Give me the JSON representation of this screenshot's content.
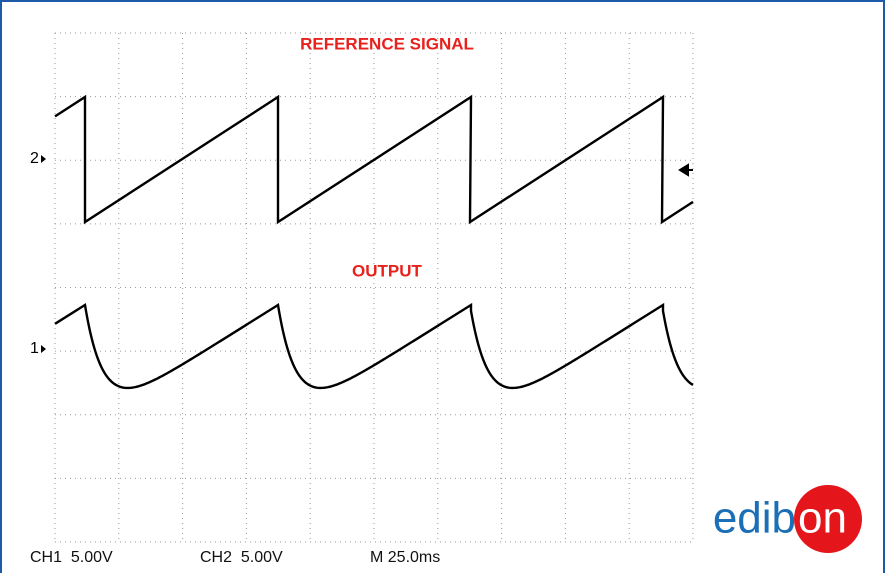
{
  "screen": {
    "labels": [
      "REFERENCE SIGNAL",
      "OUTPUT"
    ],
    "markers": [
      "2",
      "1"
    ],
    "readout": [
      "CH1  5.00V",
      "CH2  5.00V",
      "M 25.0ms"
    ]
  },
  "logo": {
    "left": "edib",
    "circle": "on"
  }
}
